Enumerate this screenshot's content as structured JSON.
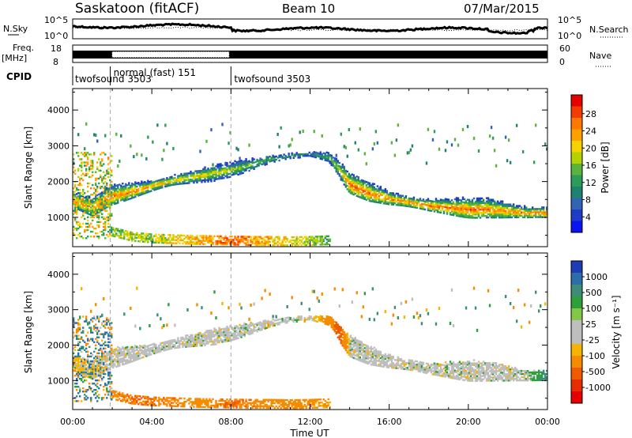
{
  "header": {
    "station": "Saskatoon (fitACF)",
    "beam": "Beam 10",
    "date": "07/Mar/2015"
  },
  "strip": {
    "nsky_label": "N.Sky",
    "nsky_ticks": [
      "10^5",
      "10^0"
    ],
    "nsearch_label": "N.Search",
    "nsearch_ticks": [
      "10^5",
      "10^0"
    ],
    "freq_label": "Freq.",
    "freq_unit": "[MHz]",
    "freq_ticks": [
      "18",
      "8"
    ],
    "nave_label": "Nave",
    "nave_ticks": [
      "60",
      "0"
    ],
    "cpid_label": "CPID",
    "cpid_modes": [
      {
        "name": "twofsound 3503",
        "start_h": 0,
        "end_h": 1.9
      },
      {
        "name": "normal (fast) 151",
        "start_h": 1.9,
        "end_h": 8.0
      },
      {
        "name": "twofsound 3503",
        "start_h": 8.0,
        "end_h": 24
      }
    ]
  },
  "panels": {
    "power": {
      "ylabel": "Slant Range [km]",
      "colorbar_label": "Power [dB]",
      "colorbar_ticks": [
        "28",
        "24",
        "20",
        "16",
        "12",
        "8",
        "4"
      ],
      "colorbar_colors": [
        "#e60000",
        "#f53c00",
        "#ff7800",
        "#ffa000",
        "#f5d200",
        "#b4d200",
        "#5ab43c",
        "#2d9b5a",
        "#1e826e",
        "#3264b4",
        "#1e3cc8",
        "#0a14f0"
      ]
    },
    "velocity": {
      "ylabel": "Slant Range [km]",
      "colorbar_label": "Velocity [m s⁻¹]",
      "colorbar_ticks": [
        "1000",
        "500",
        "100",
        "25",
        "-25",
        "-100",
        "-500",
        "-1000"
      ],
      "colorbar_colors": [
        "#1e3cb4",
        "#2d6eaa",
        "#3c8c78",
        "#2da03c",
        "#82c846",
        "#bebebe",
        "#bebebe",
        "#f5b400",
        "#f58c00",
        "#f05a00",
        "#e62d00",
        "#e60000"
      ]
    }
  },
  "xaxis": {
    "label": "Time UT",
    "ticks": [
      "00:00",
      "04:00",
      "08:00",
      "12:00",
      "16:00",
      "20:00",
      "00:00"
    ]
  },
  "chart_data": [
    {
      "type": "heatmap",
      "title": "",
      "quantity": "Power",
      "unit": "dB",
      "xlabel": "Time UT",
      "ylabel": "Slant Range [km]",
      "xlim_h": [
        0,
        24
      ],
      "ylim": [
        180,
        4600
      ],
      "yticks": [
        1000,
        2000,
        3000,
        4000
      ],
      "dashed_lines_h": [
        1.9,
        8.0
      ],
      "main_band": {
        "time_h": [
          0,
          1,
          1.9,
          3,
          4,
          5,
          6,
          7,
          8,
          9,
          10,
          11,
          12,
          13,
          13.5,
          14,
          15,
          16,
          17,
          18,
          19,
          20,
          21,
          22,
          23,
          24
        ],
        "range_km": [
          1450,
          1250,
          1550,
          1700,
          1850,
          2000,
          2100,
          2200,
          2300,
          2450,
          2600,
          2700,
          2750,
          2650,
          2300,
          1900,
          1650,
          1500,
          1400,
          1300,
          1250,
          1200,
          1200,
          1150,
          1100,
          1100
        ],
        "peak_power_db": [
          26,
          24,
          27,
          26,
          25,
          24,
          22,
          20,
          18,
          16,
          14,
          12,
          10,
          14,
          20,
          28,
          28,
          26,
          27,
          28,
          27,
          28,
          27,
          26,
          27,
          28
        ]
      },
      "lower_band": {
        "time_h": [
          1.9,
          3,
          4,
          5,
          6,
          7,
          8,
          9,
          10,
          11,
          12,
          13
        ],
        "range_km": [
          600,
          450,
          400,
          380,
          360,
          350,
          340,
          330,
          330,
          320,
          330,
          350
        ],
        "peak_power_db": [
          14,
          18,
          16,
          20,
          22,
          24,
          26,
          24,
          22,
          20,
          18,
          12
        ]
      }
    },
    {
      "type": "heatmap",
      "title": "",
      "quantity": "Velocity",
      "unit": "m s-1",
      "xlabel": "Time UT",
      "ylabel": "Slant Range [km]",
      "xlim_h": [
        0,
        24
      ],
      "ylim": [
        180,
        4600
      ],
      "yticks": [
        1000,
        2000,
        3000,
        4000
      ],
      "dashed_lines_h": [
        1.9,
        8.0
      ],
      "ground_scatter_color": "grey",
      "main_band_velocity_ms": [
        -50,
        -20,
        0,
        0,
        0,
        0,
        0,
        0,
        0,
        0,
        0,
        0,
        0,
        -200,
        -400,
        0,
        0,
        0,
        0,
        0,
        0,
        0,
        0,
        0,
        0,
        150
      ],
      "lower_band_velocity_ms": [
        -200,
        -300,
        -300,
        -250,
        -200,
        -200,
        -300,
        -250,
        -200,
        -200,
        -150,
        -100
      ]
    }
  ]
}
